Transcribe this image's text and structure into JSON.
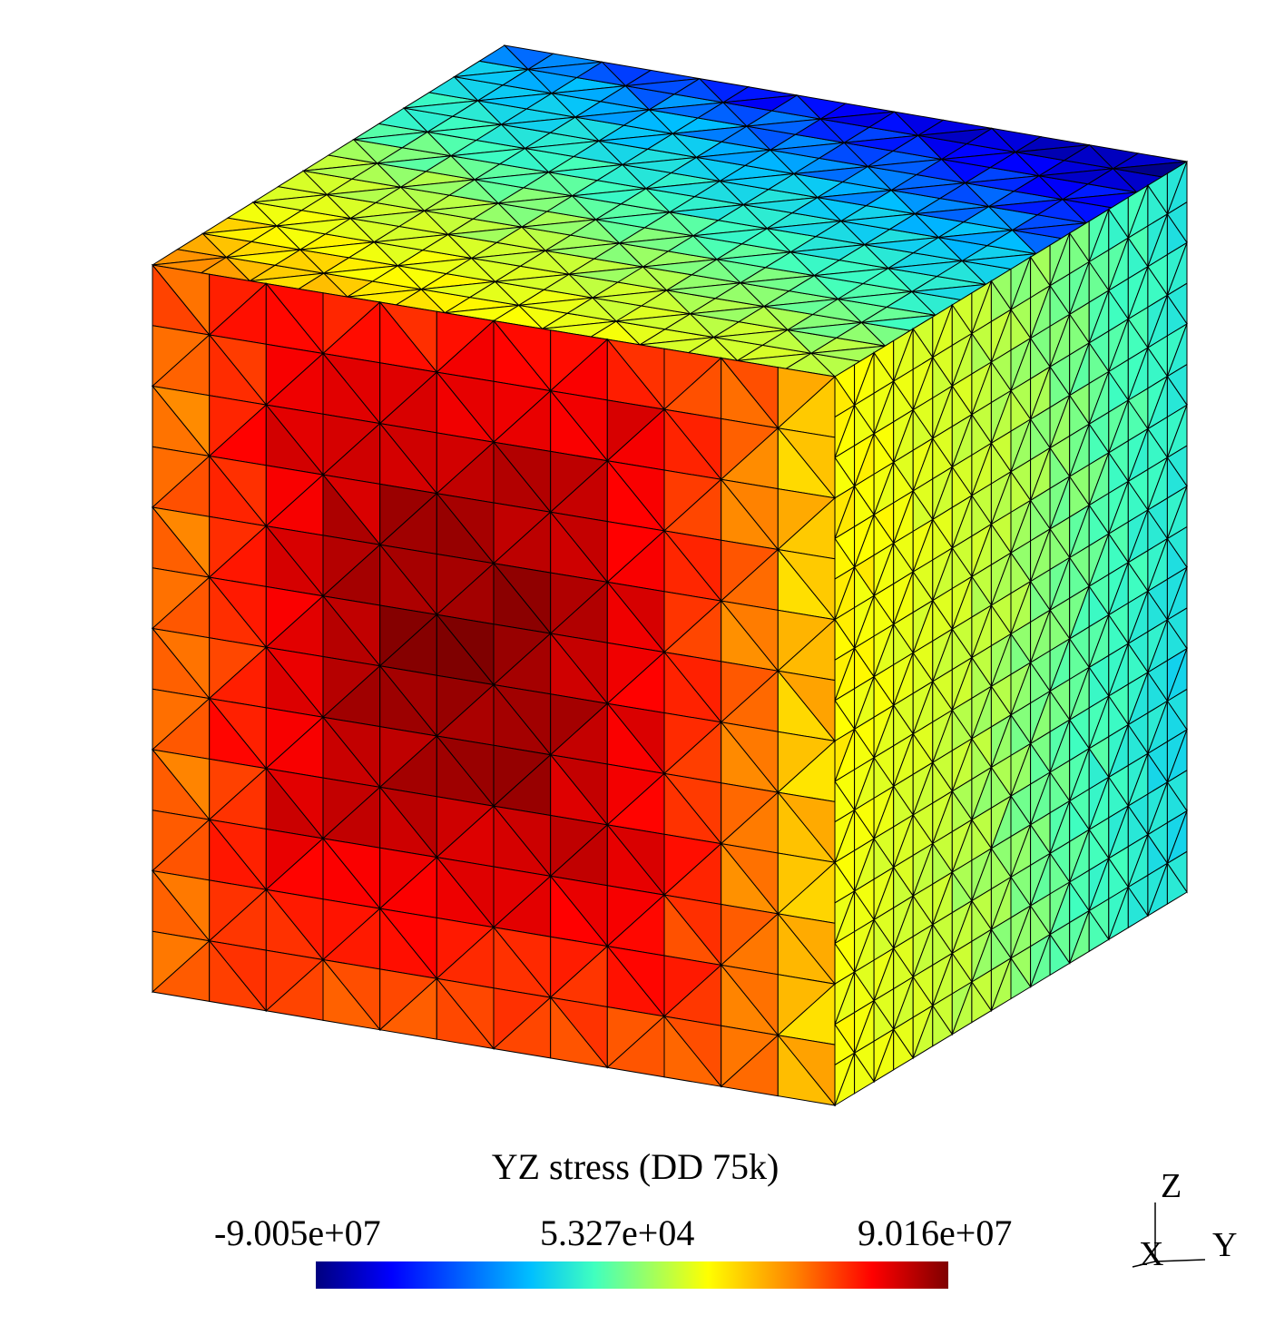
{
  "legend": {
    "title": "YZ stress (DD 75k)",
    "min_label": "-9.005e+07",
    "mid_label": "5.327e+04",
    "max_label": "9.016e+07",
    "colormap": [
      "#00007f",
      "#0000ff",
      "#00bfff",
      "#40ffbf",
      "#bfff40",
      "#ffff00",
      "#ff8000",
      "#ff0000",
      "#7f0000"
    ]
  },
  "axes_triad": {
    "z_label": "Z",
    "y_label": "Y",
    "x_label": "X"
  },
  "mesh": {
    "shape": "cube",
    "element_type": "triangle",
    "front_face": {
      "divisions": 12,
      "peak_color": "#7f0000",
      "edge_color": "#ff8000"
    },
    "right_face": {
      "divisions": 18,
      "dominant_colors": [
        "#ffff00",
        "#80ff80",
        "#00e5ff"
      ]
    },
    "top_face": {
      "divisions": 14,
      "dominant_colors": [
        "#a0ff60",
        "#40ffbf",
        "#0000ff"
      ]
    }
  }
}
